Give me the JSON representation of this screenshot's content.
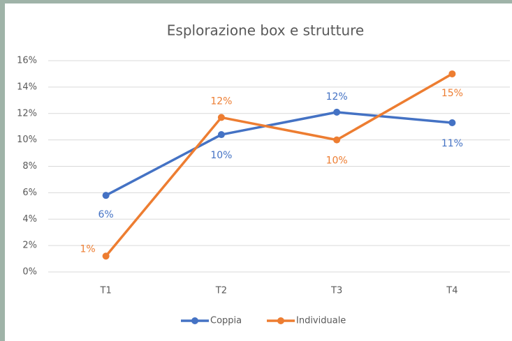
{
  "chart_data": {
    "type": "line",
    "title": "Esplorazione box e strutture",
    "categories": [
      "T1",
      "T2",
      "T3",
      "T4"
    ],
    "series": [
      {
        "name": "Coppia",
        "color": "#4472c4",
        "values": [
          5.8,
          10.4,
          12.1,
          11.3
        ],
        "value_labels": [
          "6%",
          "10%",
          "12%",
          "11%"
        ]
      },
      {
        "name": "Individuale",
        "color": "#ed7d31",
        "values": [
          1.2,
          11.7,
          10.0,
          15.0
        ],
        "value_labels": [
          "1%",
          "12%",
          "10%",
          "15%"
        ]
      }
    ],
    "ylim": [
      0,
      16
    ],
    "yticks": [
      {
        "value": 0,
        "label": "0%"
      },
      {
        "value": 2,
        "label": "2%"
      },
      {
        "value": 4,
        "label": "4%"
      },
      {
        "value": 6,
        "label": "6%"
      },
      {
        "value": 8,
        "label": "8%"
      },
      {
        "value": 10,
        "label": "10%"
      },
      {
        "value": 12,
        "label": "12%"
      },
      {
        "value": 14,
        "label": "14%"
      },
      {
        "value": 16,
        "label": "16%"
      }
    ],
    "grid": true,
    "legend": "bottom"
  }
}
